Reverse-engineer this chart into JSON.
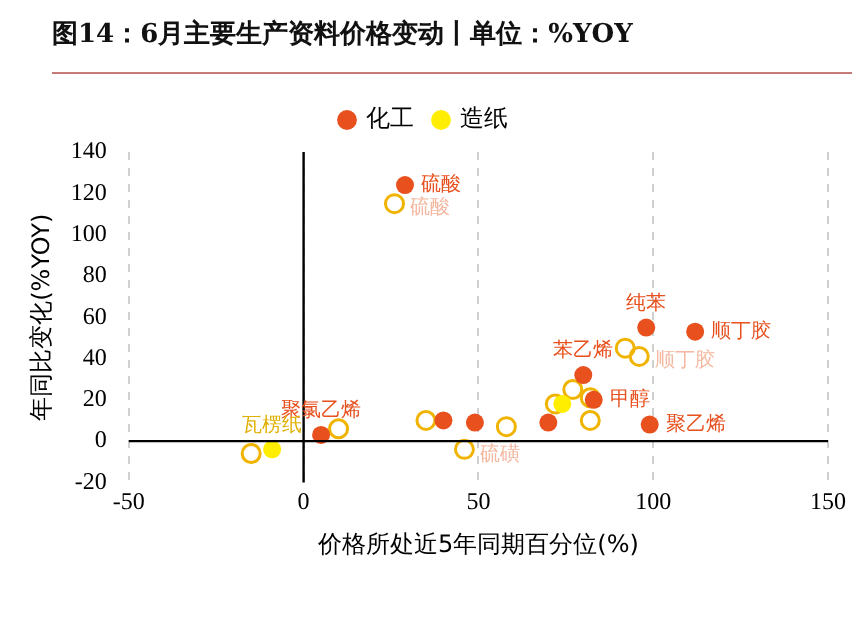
{
  "chart_data": {
    "type": "scatter",
    "title": "图14：6月主要生产资料价格变动丨单位：%YOY",
    "xlabel": "价格所处近5年同期百分位(%)",
    "ylabel": "年同比变化(%YOY)",
    "xlim": [
      -50,
      150
    ],
    "xticks": [
      -50,
      0,
      50,
      100,
      150
    ],
    "ylim": [
      -20,
      140
    ],
    "yticks": [
      -20,
      0,
      20,
      40,
      60,
      80,
      100,
      120,
      140
    ],
    "grid": "x",
    "legend": "top",
    "marker": "circle",
    "series": [
      {
        "name": "化工",
        "color": "#e8501e",
        "x": [
          29,
          98,
          112,
          80,
          83,
          99,
          40,
          49,
          70,
          5
        ],
        "values": [
          124,
          55,
          53,
          32,
          20,
          8,
          10,
          9,
          9,
          3
        ],
        "value_labels": [
          "硫酸",
          "纯苯",
          "顺丁胶",
          "苯乙烯",
          "甲醇",
          "聚乙烯",
          null,
          null,
          null,
          "聚氯乙烯"
        ]
      },
      {
        "name": "造纸",
        "color": "#ffee00",
        "x": [
          -9,
          74
        ],
        "values": [
          -4,
          18
        ],
        "value_labels": [
          "瓦楞纸",
          null
        ]
      },
      {
        "color": "#f0b400",
        "x": [
          26,
          92,
          96,
          77,
          82,
          82,
          35,
          10,
          46,
          58,
          -15,
          72
        ],
        "values": [
          115,
          45,
          41,
          25,
          21,
          10,
          10,
          6,
          -4,
          7,
          -6,
          18
        ],
        "value_labels": [
          "硫酸",
          null,
          "顺丁胶",
          null,
          null,
          null,
          null,
          null,
          "硫磺",
          null,
          null,
          null
        ]
      }
    ]
  }
}
